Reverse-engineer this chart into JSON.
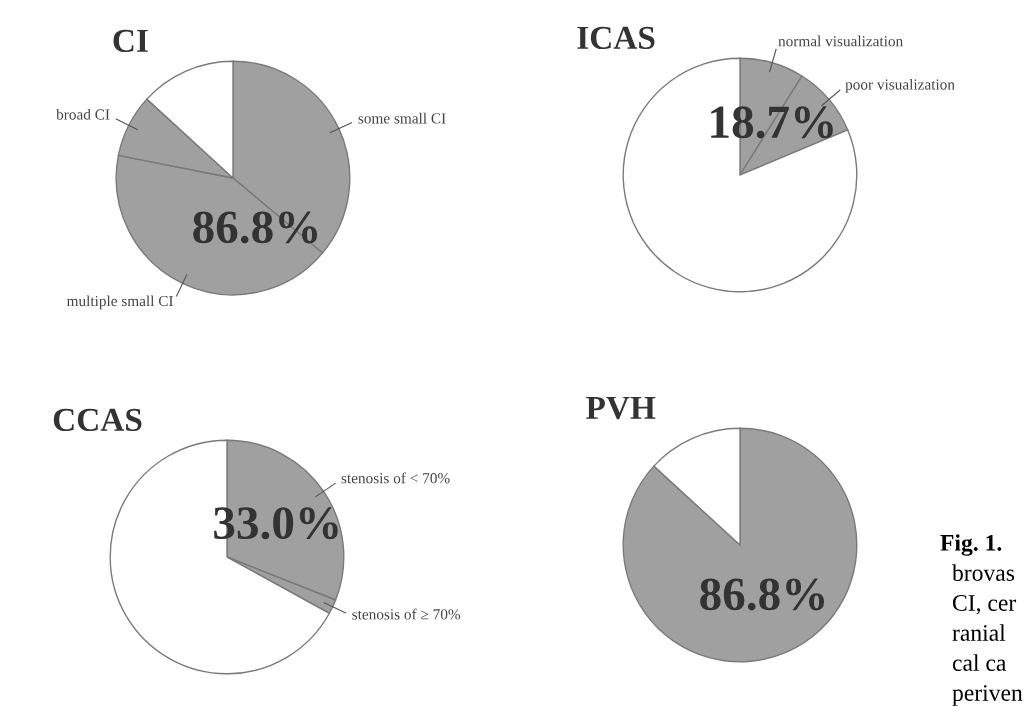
{
  "chart_data": [
    {
      "type": "pie",
      "title": "CI",
      "categories": [
        "some small CI",
        "multiple small CI",
        "broad CI",
        null
      ],
      "values": [
        36.1,
        42.0,
        8.7,
        13.2
      ],
      "colors": [
        "#a0a0a0",
        "#a0a0a0",
        "#a0a0a0",
        "#ffffff"
      ],
      "annotations": [
        "86.8%"
      ]
    },
    {
      "type": "pie",
      "title": "ICAS",
      "categories": [
        "normal visualization",
        "poor visualization",
        null
      ],
      "values": [
        8.9,
        9.8,
        81.3
      ],
      "colors": [
        "#a0a0a0",
        "#a0a0a0",
        "#ffffff"
      ],
      "annotations": [
        "18.7%"
      ]
    },
    {
      "type": "pie",
      "title": "CCAS",
      "categories": [
        "stenosis of < 70%",
        "stenosis of ≥ 70%",
        null
      ],
      "values": [
        31.0,
        2.0,
        67.0
      ],
      "colors": [
        "#a0a0a0",
        "#a0a0a0",
        "#ffffff"
      ],
      "annotations": [
        "33.0%"
      ]
    },
    {
      "type": "pie",
      "title": "PVH",
      "categories": [
        null,
        null
      ],
      "values": [
        86.8,
        13.2
      ],
      "colors": [
        "#a0a0a0",
        "#ffffff"
      ],
      "annotations": [
        "86.8%",
        "Fig. 1.",
        "brovas",
        "CI, cer",
        "ranial",
        "cal ca",
        "periven"
      ]
    }
  ]
}
